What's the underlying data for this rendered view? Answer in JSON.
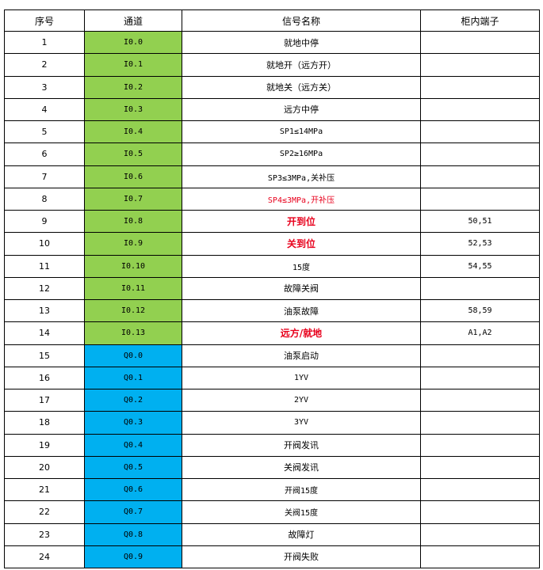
{
  "colors": {
    "input_channel": "#92d050",
    "output_channel": "#00b0f0",
    "highlight_text": "#e8001c"
  },
  "headers": [
    "序号",
    "通道",
    "信号名称",
    "柜内端子"
  ],
  "rows": [
    {
      "no": "1",
      "channel": "I0.0",
      "signal": "就地中停",
      "terminal": "",
      "type": "input",
      "style": ""
    },
    {
      "no": "2",
      "channel": "I0.1",
      "signal": "就地开（远方开）",
      "terminal": "",
      "type": "input",
      "style": ""
    },
    {
      "no": "3",
      "channel": "I0.2",
      "signal": "就地关（远方关）",
      "terminal": "",
      "type": "input",
      "style": ""
    },
    {
      "no": "4",
      "channel": "I0.3",
      "signal": "远方中停",
      "terminal": "",
      "type": "input",
      "style": ""
    },
    {
      "no": "5",
      "channel": "I0.4",
      "signal": "SP1≤14MPa",
      "terminal": "",
      "type": "input",
      "style": ""
    },
    {
      "no": "6",
      "channel": "I0.5",
      "signal": "SP2≥16MPa",
      "terminal": "",
      "type": "input",
      "style": ""
    },
    {
      "no": "7",
      "channel": "I0.6",
      "signal": "SP3≤3MPa,关补压",
      "terminal": "",
      "type": "input",
      "style": ""
    },
    {
      "no": "8",
      "channel": "I0.7",
      "signal": "SP4≤3MPa,开补压",
      "terminal": "",
      "type": "input",
      "style": "red"
    },
    {
      "no": "9",
      "channel": "I0.8",
      "signal": "开到位",
      "terminal": "50,51",
      "type": "input",
      "style": "red bold"
    },
    {
      "no": "10",
      "channel": "I0.9",
      "signal": "关到位",
      "terminal": "52,53",
      "type": "input",
      "style": "red bold"
    },
    {
      "no": "11",
      "channel": "I0.10",
      "signal": "15度",
      "terminal": "54,55",
      "type": "input",
      "style": ""
    },
    {
      "no": "12",
      "channel": "I0.11",
      "signal": "故障关阀",
      "terminal": "",
      "type": "input",
      "style": ""
    },
    {
      "no": "13",
      "channel": "I0.12",
      "signal": "油泵故障",
      "terminal": "58,59",
      "type": "input",
      "style": ""
    },
    {
      "no": "14",
      "channel": "I0.13",
      "signal": "远方/就地",
      "terminal": "A1,A2",
      "type": "input",
      "style": "red bold"
    },
    {
      "no": "15",
      "channel": "Q0.0",
      "signal": "油泵启动",
      "terminal": "",
      "type": "output",
      "style": ""
    },
    {
      "no": "16",
      "channel": "Q0.1",
      "signal": "1YV",
      "terminal": "",
      "type": "output",
      "style": ""
    },
    {
      "no": "17",
      "channel": "Q0.2",
      "signal": "2YV",
      "terminal": "",
      "type": "output",
      "style": ""
    },
    {
      "no": "18",
      "channel": "Q0.3",
      "signal": "3YV",
      "terminal": "",
      "type": "output",
      "style": ""
    },
    {
      "no": "19",
      "channel": "Q0.4",
      "signal": "开阀发讯",
      "terminal": "",
      "type": "output",
      "style": ""
    },
    {
      "no": "20",
      "channel": "Q0.5",
      "signal": "关阀发讯",
      "terminal": "",
      "type": "output",
      "style": ""
    },
    {
      "no": "21",
      "channel": "Q0.6",
      "signal": "开阀15度",
      "terminal": "",
      "type": "output",
      "style": ""
    },
    {
      "no": "22",
      "channel": "Q0.7",
      "signal": "关阀15度",
      "terminal": "",
      "type": "output",
      "style": ""
    },
    {
      "no": "23",
      "channel": "Q0.8",
      "signal": "故障灯",
      "terminal": "",
      "type": "output",
      "style": ""
    },
    {
      "no": "24",
      "channel": "Q0.9",
      "signal": "开阀失败",
      "terminal": "",
      "type": "output",
      "style": ""
    }
  ]
}
